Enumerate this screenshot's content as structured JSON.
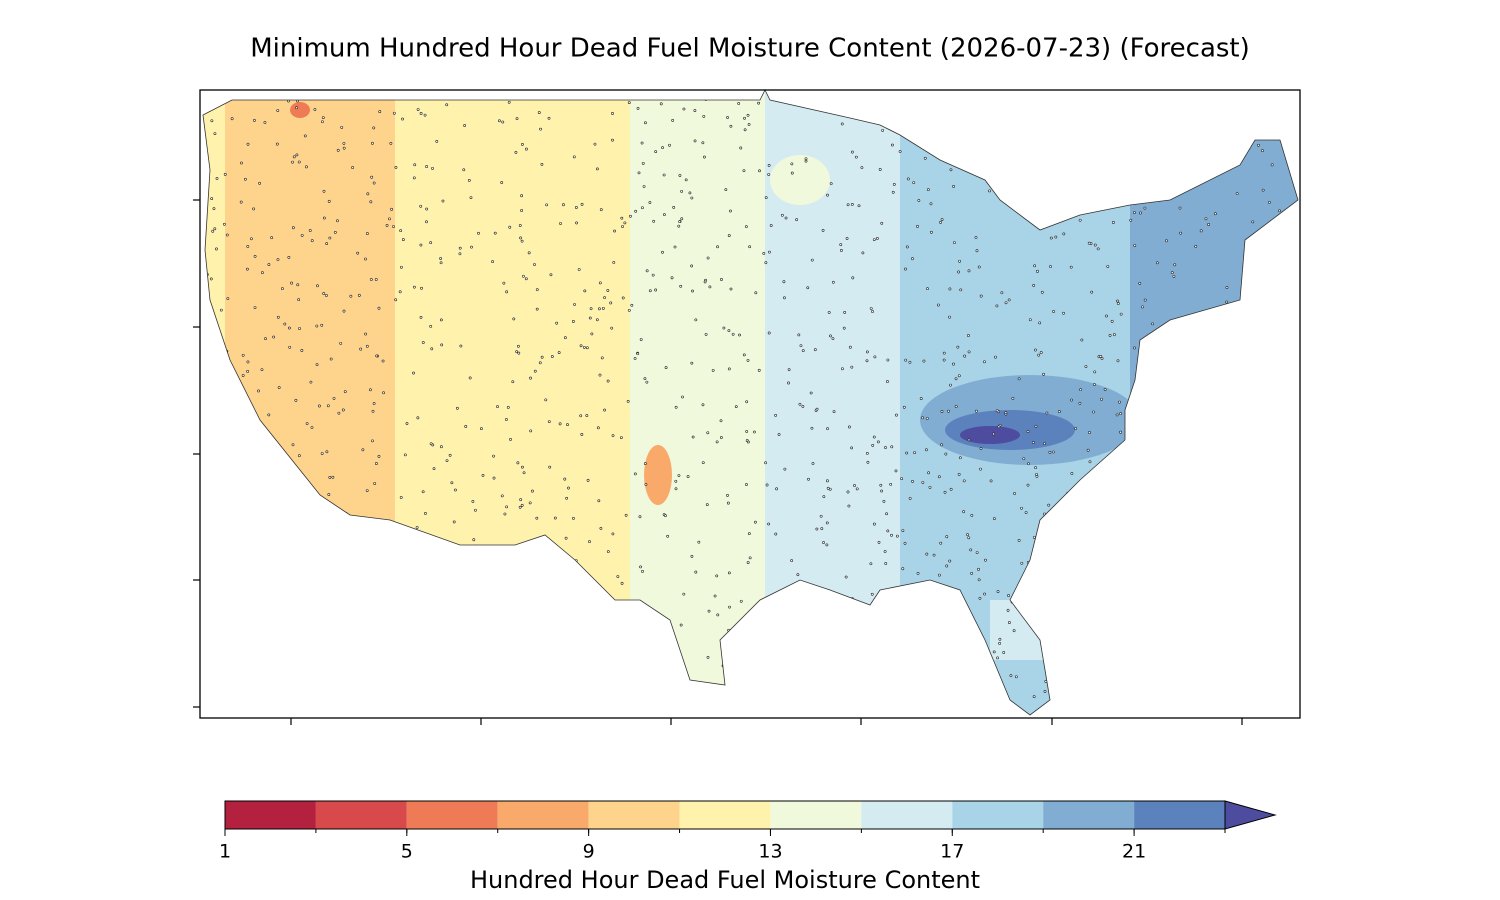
{
  "title": "Minimum Hundred Hour Dead Fuel Moisture Content (2026-07-23) (Forecast)",
  "colorbar": {
    "label": "Hundred Hour Dead Fuel Moisture Content",
    "levels": [
      1,
      3,
      5,
      7,
      9,
      11,
      13,
      15,
      17,
      19,
      21,
      23
    ],
    "colors": [
      "#b3213f",
      "#d7494a",
      "#ee7b55",
      "#f9aa6b",
      "#fed38b",
      "#fff2ad",
      "#f1f9dc",
      "#d4ebf2",
      "#a9d3e6",
      "#81add2",
      "#5c82be"
    ],
    "extend_color": "#4d4c9f",
    "ticks": [
      1,
      5,
      9,
      13,
      17,
      21
    ]
  }
}
